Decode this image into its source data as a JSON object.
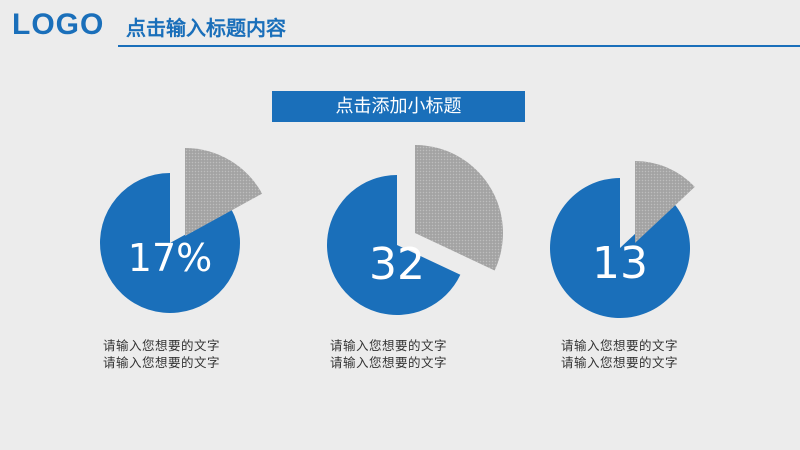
{
  "header": {
    "logo": "LOGO",
    "title": "点击输入标题内容"
  },
  "subtitle": "点击添加小标题",
  "colors": {
    "accent": "#1a6fba",
    "slice": "#a6a6a6",
    "background": "#ececec"
  },
  "items": [
    {
      "value": 17,
      "label": "17%",
      "caption": [
        "请输入您想要的文字",
        "请输入您想要的文字"
      ]
    },
    {
      "value": 32,
      "label": "32",
      "caption": [
        "请输入您想要的文字",
        "请输入您想要的文字"
      ]
    },
    {
      "value": 13,
      "label": "13",
      "caption": [
        "请输入您想要的文字",
        "请输入您想要的文字"
      ]
    }
  ]
}
